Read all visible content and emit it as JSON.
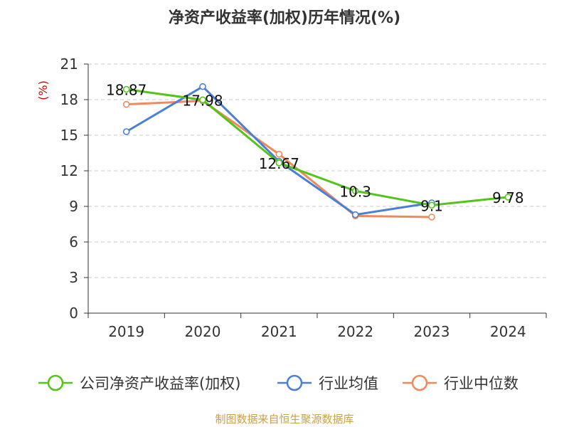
{
  "title": "净资产收益率(加权)历年情况(%)",
  "source": "制图数据来自恒生聚源数据库",
  "chart_data": {
    "type": "line",
    "title": "净资产收益率(加权)历年情况(%)",
    "ylabel": "(%)",
    "xlabel": "",
    "categories": [
      "2019",
      "2020",
      "2021",
      "2022",
      "2023",
      "2024"
    ],
    "ylim": [
      0,
      21
    ],
    "yticks": [
      0,
      3,
      6,
      9,
      12,
      15,
      18,
      21
    ],
    "grid": true,
    "legend_position": "bottom",
    "series": [
      {
        "name": "公司净资产收益率(加权)",
        "color": "#52c41a",
        "values": [
          18.87,
          17.98,
          12.67,
          10.3,
          9.1,
          9.78
        ],
        "labels": [
          "18.87",
          "17.98",
          "12.67",
          "10.3",
          "9.1",
          "9.78"
        ]
      },
      {
        "name": "行业均值",
        "color": "#4a7fd6",
        "values": [
          15.3,
          19.1,
          12.8,
          8.3,
          9.3,
          null
        ]
      },
      {
        "name": "行业中位数",
        "color": "#f08a5d",
        "values": [
          17.6,
          17.9,
          13.4,
          8.2,
          8.1,
          null
        ]
      }
    ]
  }
}
